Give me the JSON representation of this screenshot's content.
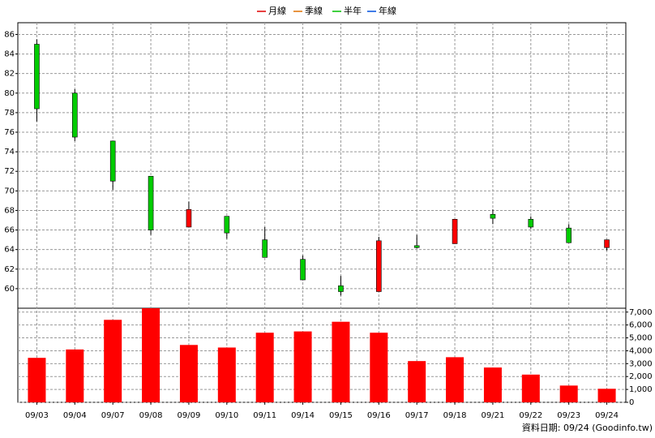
{
  "chart_data": {
    "type": "candlestick",
    "legend": [
      {
        "name": "月線",
        "color": "#e00000"
      },
      {
        "name": "季線",
        "color": "#e07000"
      },
      {
        "name": "半年",
        "color": "#00c000"
      },
      {
        "name": "年線",
        "color": "#0050e0"
      }
    ],
    "categories": [
      "09/03",
      "09/04",
      "09/07",
      "09/08",
      "09/09",
      "09/10",
      "09/11",
      "09/14",
      "09/15",
      "09/16",
      "09/17",
      "09/18",
      "09/21",
      "09/22",
      "09/23",
      "09/24"
    ],
    "open": [
      85.0,
      80.0,
      75.1,
      71.5,
      66.3,
      67.4,
      65.0,
      63.0,
      60.3,
      59.7,
      64.4,
      64.6,
      67.6,
      67.1,
      66.2,
      64.2
    ],
    "high": [
      85.5,
      80.4,
      75.1,
      71.5,
      68.9,
      67.4,
      66.3,
      63.4,
      61.3,
      65.3,
      65.5,
      67.1,
      68.1,
      67.4,
      66.6,
      65.0
    ],
    "low": [
      77.1,
      75.1,
      70.1,
      65.5,
      66.3,
      65.1,
      63.2,
      60.9,
      59.3,
      59.7,
      64.1,
      64.6,
      66.6,
      66.1,
      64.7,
      63.9
    ],
    "close": [
      78.4,
      75.5,
      71.0,
      66.0,
      68.1,
      65.7,
      63.2,
      60.9,
      59.7,
      64.9,
      64.2,
      67.1,
      67.2,
      66.3,
      64.7,
      65.0
    ],
    "volume": [
      3450,
      4100,
      6400,
      7300,
      4450,
      4250,
      5400,
      5500,
      6250,
      5400,
      3200,
      3500,
      2700,
      2150,
      1300,
      1050
    ],
    "up_color": "#ff0000",
    "down_color": "#00cc00",
    "volume_color": "#ff0000",
    "ylim": [
      58,
      87.2
    ],
    "yticks": [
      60,
      62,
      64,
      66,
      68,
      70,
      72,
      74,
      76,
      78,
      80,
      82,
      84,
      86
    ],
    "y2lim": [
      0,
      7300
    ],
    "y2ticks": [
      0,
      {
        "value": 1000,
        "label": "1,000"
      },
      {
        "value": 2000,
        "label": "2,000"
      },
      {
        "value": 3000,
        "label": "3,000"
      },
      {
        "value": 4000,
        "label": "4,000"
      },
      {
        "value": 5000,
        "label": "5,000"
      },
      {
        "value": 6000,
        "label": "6,000"
      },
      {
        "value": 7000,
        "label": "7,000"
      }
    ],
    "grid": true,
    "footer": "資料日期: 09/24 (Goodinfo.tw)"
  }
}
